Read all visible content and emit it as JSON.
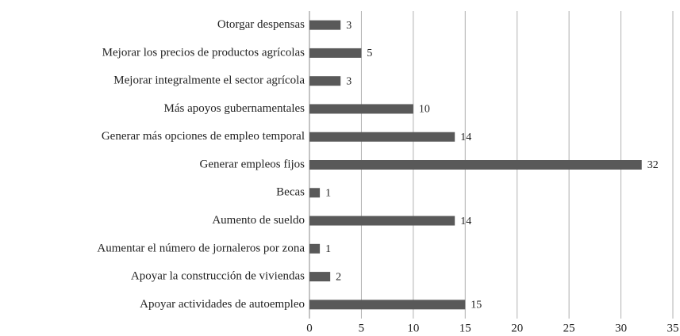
{
  "chart_data": {
    "type": "barh",
    "categories": [
      "Otorgar despensas",
      "Mejorar los precios de productos agrícolas",
      "Mejorar integralmente el sector agrícola",
      "Más apoyos gubernamentales",
      "Generar más opciones de empleo temporal",
      "Generar empleos fijos",
      "Becas",
      "Aumento de sueldo",
      "Aumentar el número de jornaleros por zona",
      "Apoyar la construcción de viviendas",
      "Apoyar actividades de autoempleo"
    ],
    "values": [
      3,
      5,
      3,
      10,
      14,
      32,
      1,
      14,
      1,
      2,
      15
    ],
    "color": "#595959",
    "xlim": [
      0,
      35
    ],
    "xticks": [
      0,
      5,
      10,
      15,
      20,
      25,
      30,
      35
    ],
    "grid": true
  }
}
